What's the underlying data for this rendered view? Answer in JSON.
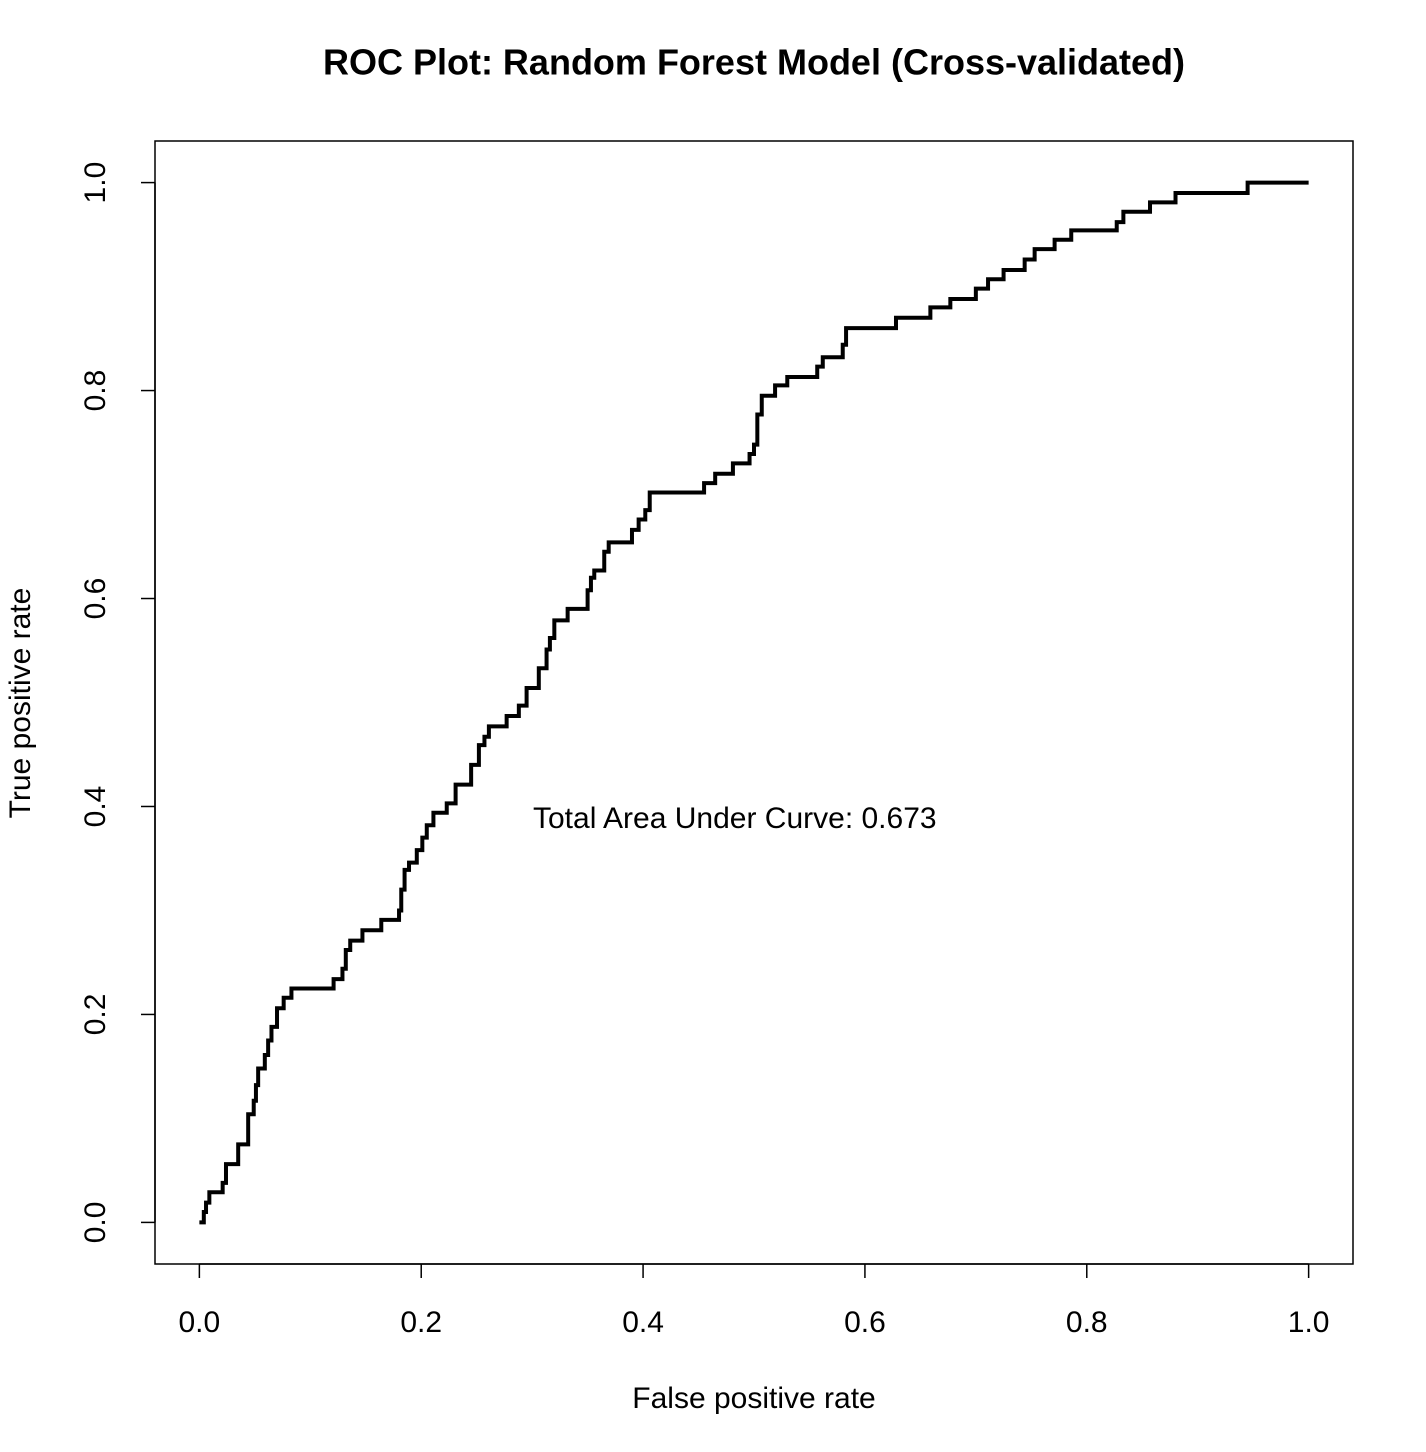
{
  "chart_data": {
    "type": "line",
    "title": "ROC Plot: Random Forest Model (Cross-validated)",
    "xlabel": "False positive rate",
    "ylabel": "True positive rate",
    "annotation": "Total Area Under Curve: 0.673",
    "x": [
      0,
      0.004,
      0.004,
      0.006,
      0.006,
      0.009,
      0.009,
      0.021,
      0.021,
      0.024,
      0.024,
      0.035,
      0.035,
      0.044,
      0.044,
      0.049,
      0.049,
      0.051,
      0.051,
      0.053,
      0.053,
      0.059,
      0.059,
      0.062,
      0.062,
      0.065,
      0.065,
      0.07,
      0.07,
      0.076,
      0.076,
      0.083,
      0.083,
      0.121,
      0.121,
      0.129,
      0.129,
      0.132,
      0.132,
      0.136,
      0.136,
      0.147,
      0.147,
      0.164,
      0.164,
      0.18,
      0.18,
      0.182,
      0.182,
      0.185,
      0.185,
      0.189,
      0.189,
      0.196,
      0.196,
      0.201,
      0.201,
      0.205,
      0.205,
      0.211,
      0.211,
      0.223,
      0.223,
      0.231,
      0.231,
      0.245,
      0.245,
      0.252,
      0.252,
      0.257,
      0.257,
      0.261,
      0.261,
      0.277,
      0.277,
      0.288,
      0.288,
      0.295,
      0.295,
      0.306,
      0.306,
      0.313,
      0.313,
      0.316,
      0.316,
      0.32,
      0.32,
      0.332,
      0.332,
      0.35,
      0.35,
      0.353,
      0.353,
      0.356,
      0.356,
      0.365,
      0.365,
      0.369,
      0.369,
      0.39,
      0.39,
      0.396,
      0.396,
      0.402,
      0.402,
      0.406,
      0.406,
      0.455,
      0.455,
      0.465,
      0.465,
      0.481,
      0.481,
      0.496,
      0.496,
      0.5,
      0.5,
      0.503,
      0.503,
      0.507,
      0.507,
      0.519,
      0.519,
      0.53,
      0.53,
      0.557,
      0.557,
      0.562,
      0.562,
      0.58,
      0.58,
      0.583,
      0.583,
      0.628,
      0.628,
      0.659,
      0.659,
      0.677,
      0.677,
      0.7,
      0.7,
      0.711,
      0.711,
      0.725,
      0.725,
      0.744,
      0.744,
      0.753,
      0.753,
      0.771,
      0.771,
      0.786,
      0.786,
      0.827,
      0.827,
      0.833,
      0.833,
      0.857,
      0.857,
      0.88,
      0.88,
      0.945,
      0.945,
      1.0
    ],
    "series": [
      {
        "color": "#000000",
        "values": [
          0,
          0,
          0.01,
          0.01,
          0.019,
          0.019,
          0.029,
          0.029,
          0.038,
          0.038,
          0.056,
          0.056,
          0.075,
          0.075,
          0.104,
          0.104,
          0.117,
          0.117,
          0.132,
          0.132,
          0.148,
          0.148,
          0.161,
          0.161,
          0.175,
          0.175,
          0.188,
          0.188,
          0.206,
          0.206,
          0.216,
          0.216,
          0.225,
          0.225,
          0.234,
          0.234,
          0.244,
          0.244,
          0.262,
          0.262,
          0.271,
          0.271,
          0.281,
          0.281,
          0.291,
          0.291,
          0.3,
          0.3,
          0.32,
          0.32,
          0.339,
          0.339,
          0.346,
          0.346,
          0.358,
          0.358,
          0.37,
          0.37,
          0.382,
          0.382,
          0.394,
          0.394,
          0.403,
          0.403,
          0.421,
          0.421,
          0.44,
          0.44,
          0.459,
          0.459,
          0.467,
          0.467,
          0.477,
          0.477,
          0.487,
          0.487,
          0.497,
          0.497,
          0.514,
          0.514,
          0.533,
          0.533,
          0.551,
          0.551,
          0.562,
          0.562,
          0.579,
          0.579,
          0.59,
          0.59,
          0.608,
          0.608,
          0.62,
          0.62,
          0.627,
          0.627,
          0.645,
          0.645,
          0.654,
          0.654,
          0.666,
          0.666,
          0.676,
          0.676,
          0.685,
          0.685,
          0.702,
          0.702,
          0.711,
          0.711,
          0.72,
          0.72,
          0.73,
          0.73,
          0.739,
          0.739,
          0.748,
          0.748,
          0.777,
          0.777,
          0.795,
          0.795,
          0.805,
          0.805,
          0.813,
          0.813,
          0.823,
          0.823,
          0.832,
          0.832,
          0.844,
          0.844,
          0.86,
          0.86,
          0.87,
          0.87,
          0.88,
          0.88,
          0.888,
          0.888,
          0.898,
          0.898,
          0.907,
          0.907,
          0.916,
          0.916,
          0.926,
          0.926,
          0.936,
          0.936,
          0.945,
          0.945,
          0.954,
          0.954,
          0.962,
          0.962,
          0.972,
          0.972,
          0.981,
          0.981,
          0.99,
          0.99,
          1.0,
          1.0
        ]
      }
    ],
    "xlim": [
      -0.04,
      1.04
    ],
    "ylim": [
      -0.04,
      1.04
    ],
    "xticks": [
      {
        "value": 0,
        "label": "0.0"
      },
      0.2,
      0.4,
      0.6,
      0.8,
      {
        "value": 1,
        "label": "1.0"
      }
    ],
    "yticks": [
      {
        "value": 0,
        "label": "0.0"
      },
      0.2,
      0.4,
      0.6,
      0.8,
      {
        "value": 1,
        "label": "1.0"
      }
    ]
  }
}
